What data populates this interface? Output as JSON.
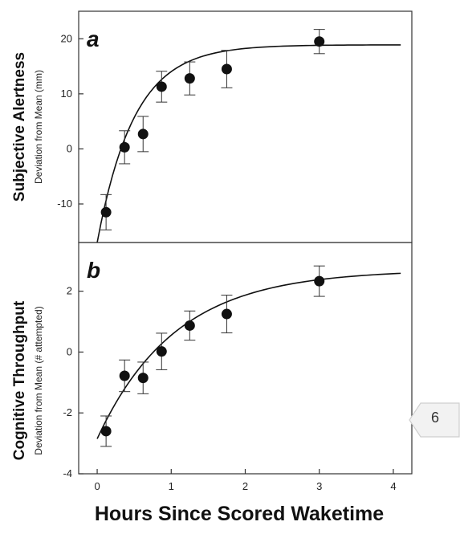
{
  "chart_data": [
    {
      "type": "scatter",
      "panel_letter": "a",
      "ylabel": "Subjective Alertness",
      "ylabel_sub": "Deviation from Mean (mm)",
      "xlabel": "",
      "xlim": [
        -0.25,
        4.25
      ],
      "ylim": [
        -17,
        25
      ],
      "yticks": [
        -10,
        0,
        10,
        20
      ],
      "ytick_labels": [
        "-10",
        "0",
        "10",
        "20"
      ],
      "points": [
        {
          "x": 0.12,
          "y": -11.5,
          "err": 3.2
        },
        {
          "x": 0.37,
          "y": 0.3,
          "err": 3.0
        },
        {
          "x": 0.62,
          "y": 2.7,
          "err": 3.2
        },
        {
          "x": 0.87,
          "y": 11.3,
          "err": 2.8
        },
        {
          "x": 1.25,
          "y": 12.8,
          "err": 3.0
        },
        {
          "x": 1.75,
          "y": 14.5,
          "err": 3.4
        },
        {
          "x": 3.0,
          "y": 19.5,
          "err": 2.2
        }
      ],
      "fit_curve": {
        "asymptote": 18.9,
        "start": -17.0,
        "rate": 2.0,
        "x_range": [
          0.0,
          4.1
        ]
      }
    },
    {
      "type": "scatter",
      "panel_letter": "b",
      "ylabel": "Cognitive Throughput",
      "ylabel_sub": "Deviation from Mean (# attempted)",
      "xlabel": "Hours Since Scored Waketime",
      "xlim": [
        -0.25,
        4.25
      ],
      "ylim": [
        -4,
        3.6
      ],
      "yticks": [
        -4,
        -2,
        0,
        2
      ],
      "ytick_labels": [
        "-4",
        "-2",
        "0",
        "2"
      ],
      "xticks": [
        0,
        1,
        2,
        3,
        4
      ],
      "xtick_labels": [
        "0",
        "1",
        "2",
        "3",
        "4"
      ],
      "points": [
        {
          "x": 0.12,
          "y": -2.6,
          "err": 0.5
        },
        {
          "x": 0.37,
          "y": -0.78,
          "err": 0.52
        },
        {
          "x": 0.62,
          "y": -0.85,
          "err": 0.52
        },
        {
          "x": 0.87,
          "y": 0.02,
          "err": 0.6
        },
        {
          "x": 1.25,
          "y": 0.87,
          "err": 0.48
        },
        {
          "x": 1.75,
          "y": 1.25,
          "err": 0.62
        },
        {
          "x": 3.0,
          "y": 2.33,
          "err": 0.5
        }
      ],
      "fit_curve": {
        "asymptote": 2.7,
        "start": -2.85,
        "rate": 0.95,
        "x_range": [
          0.0,
          4.1
        ]
      }
    }
  ],
  "page_tab": {
    "number": "6"
  },
  "colors": {
    "marker": "#111111",
    "axis": "#333333",
    "tab_bg": "#f2f2f2",
    "tab_border": "#cfcfcf"
  }
}
